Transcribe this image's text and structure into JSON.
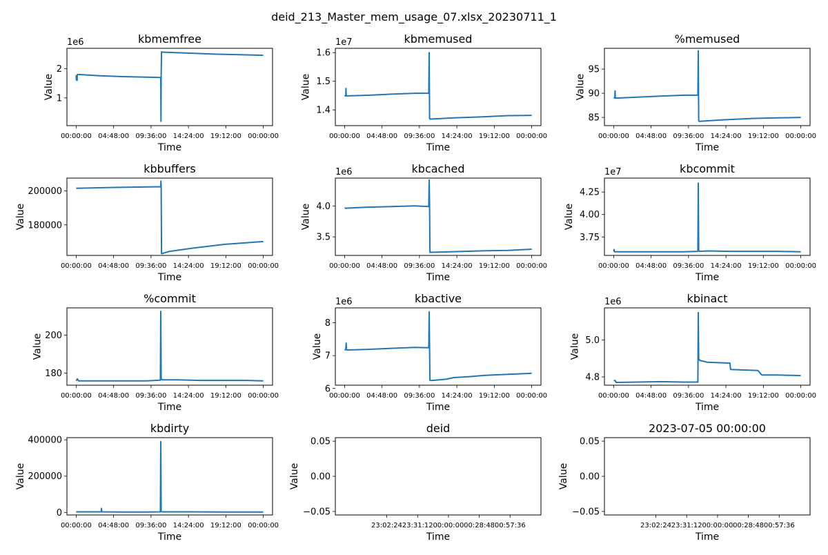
{
  "figure": {
    "title": "deid_213_Master_mem_usage_07.xlsx_20230711_1",
    "line_color": "#1f77b4"
  },
  "chart_data": [
    {
      "type": "line",
      "title": "kbmemfree",
      "xlabel": "Time",
      "ylabel": "Value",
      "offset_text": "1e6",
      "x_ticks": [
        "00:00:00",
        "04:48:00",
        "09:36:00",
        "14:24:00",
        "19:12:00",
        "00:00:00"
      ],
      "y_ticks": [
        "1",
        "2"
      ],
      "y_tick_values": [
        1,
        2
      ],
      "ylim": [
        0.05,
        2.7
      ],
      "series": [
        {
          "x_hours": [
            0,
            0.02,
            0.08,
            0.12,
            0.13,
            0.15,
            0.5,
            3,
            6,
            9,
            10.85,
            10.88,
            10.9,
            10.95,
            11.0,
            11.05,
            14,
            18,
            21,
            24
          ],
          "values": [
            1.78,
            1.62,
            1.73,
            1.6,
            1.78,
            1.8,
            1.8,
            1.76,
            1.73,
            1.71,
            1.7,
            0.2,
            1.8,
            2.58,
            2.58,
            2.57,
            2.54,
            2.5,
            2.48,
            2.46
          ]
        }
      ]
    },
    {
      "type": "line",
      "title": "kbmemused",
      "xlabel": "Time",
      "ylabel": "Value",
      "offset_text": "1e7",
      "x_ticks": [
        "00:00:00",
        "04:48:00",
        "09:36:00",
        "14:24:00",
        "19:12:00",
        "00:00:00"
      ],
      "y_ticks": [
        "1.4",
        "1.5",
        "1.6"
      ],
      "y_tick_values": [
        1.4,
        1.5,
        1.6
      ],
      "ylim": [
        1.345,
        1.615
      ],
      "series": [
        {
          "x_hours": [
            0,
            0.15,
            0.18,
            0.2,
            0.22,
            0.3,
            3,
            6,
            9,
            10.8,
            10.85,
            10.9,
            10.95,
            11.1,
            14,
            18,
            21,
            24
          ],
          "values": [
            1.448,
            1.45,
            1.475,
            1.452,
            1.448,
            1.449,
            1.451,
            1.455,
            1.458,
            1.458,
            1.6,
            1.37,
            1.368,
            1.368,
            1.372,
            1.376,
            1.38,
            1.381
          ]
        }
      ]
    },
    {
      "type": "line",
      "title": "%memused",
      "xlabel": "Time",
      "ylabel": "Value",
      "offset_text": "",
      "x_ticks": [
        "00:00:00",
        "04:48:00",
        "09:36:00",
        "14:24:00",
        "19:12:00",
        "00:00:00"
      ],
      "y_ticks": [
        "85",
        "90",
        "95"
      ],
      "y_tick_values": [
        85,
        90,
        95
      ],
      "ylim": [
        83.3,
        99.3
      ],
      "series": [
        {
          "x_hours": [
            0,
            0.15,
            0.18,
            0.2,
            0.22,
            0.3,
            3,
            6,
            9,
            10.8,
            10.85,
            10.9,
            10.95,
            11.1,
            14,
            18,
            21,
            24
          ],
          "values": [
            89.0,
            89.1,
            90.5,
            89.3,
            89.0,
            89.0,
            89.2,
            89.4,
            89.6,
            89.6,
            98.8,
            84.3,
            84.2,
            84.2,
            84.5,
            84.8,
            84.9,
            85.0
          ]
        }
      ]
    },
    {
      "type": "line",
      "title": "kbbuffers",
      "xlabel": "Time",
      "ylabel": "Value",
      "offset_text": "",
      "x_ticks": [
        "00:00:00",
        "04:48:00",
        "09:36:00",
        "14:24:00",
        "19:12:00",
        "00:00:00"
      ],
      "y_ticks": [
        "180000",
        "200000"
      ],
      "y_tick_values": [
        180000,
        200000
      ],
      "ylim": [
        162000,
        207600
      ],
      "series": [
        {
          "x_hours": [
            0,
            5,
            10.85,
            10.87,
            10.9,
            10.95,
            12,
            15,
            19,
            24
          ],
          "values": [
            201600,
            202100,
            202500,
            205800,
            202300,
            163000,
            164400,
            166300,
            168500,
            170200
          ]
        }
      ]
    },
    {
      "type": "line",
      "title": "kbcached",
      "xlabel": "Time",
      "ylabel": "Value",
      "offset_text": "1e6",
      "x_ticks": [
        "00:00:00",
        "04:48:00",
        "09:36:00",
        "14:24:00",
        "19:12:00",
        "00:00:00"
      ],
      "y_ticks": [
        "3.5",
        "4.0"
      ],
      "y_tick_values": [
        3.5,
        4.0
      ],
      "ylim": [
        3.2,
        4.45
      ],
      "series": [
        {
          "x_hours": [
            0,
            0.2,
            0.3,
            3,
            6,
            9,
            10.8,
            10.85,
            10.9,
            10.95,
            11.1,
            14,
            18,
            21,
            24
          ],
          "values": [
            3.97,
            3.96,
            3.965,
            3.98,
            3.99,
            4.0,
            3.99,
            4.42,
            3.99,
            3.25,
            3.25,
            3.26,
            3.275,
            3.28,
            3.3
          ]
        }
      ]
    },
    {
      "type": "line",
      "title": "kbcommit",
      "xlabel": "Time",
      "ylabel": "Value",
      "offset_text": "1e7",
      "x_ticks": [
        "00:00:00",
        "04:48:00",
        "09:36:00",
        "14:24:00",
        "19:12:00",
        "00:00:00"
      ],
      "y_ticks": [
        "3.75",
        "4.00",
        "4.25"
      ],
      "y_tick_values": [
        3.75,
        4.0,
        4.25
      ],
      "ylim": [
        3.545,
        4.405
      ],
      "series": [
        {
          "x_hours": [
            0,
            0.05,
            0.1,
            0.3,
            3,
            6,
            9,
            10.8,
            10.85,
            10.9,
            11,
            12,
            15,
            18,
            21,
            24
          ],
          "values": [
            3.59,
            3.61,
            3.585,
            3.585,
            3.585,
            3.585,
            3.585,
            3.59,
            4.35,
            3.6,
            3.59,
            3.595,
            3.59,
            3.59,
            3.59,
            3.585
          ]
        }
      ]
    },
    {
      "type": "line",
      "title": "%commit",
      "xlabel": "Time",
      "ylabel": "Value",
      "offset_text": "",
      "x_ticks": [
        "00:00:00",
        "04:48:00",
        "09:36:00",
        "14:24:00",
        "19:12:00",
        "00:00:00"
      ],
      "y_ticks": [
        "180",
        "200"
      ],
      "y_tick_values": [
        180,
        200
      ],
      "ylim": [
        173.7,
        214.3
      ],
      "series": [
        {
          "x_hours": [
            0,
            0.15,
            0.3,
            3,
            6,
            9,
            10.8,
            10.85,
            10.9,
            11,
            13,
            16,
            19,
            22,
            24
          ],
          "values": [
            176,
            177,
            176,
            176,
            176,
            176,
            176.3,
            212.5,
            177,
            176.5,
            176.5,
            176.2,
            176.2,
            176.2,
            176
          ]
        }
      ]
    },
    {
      "type": "line",
      "title": "kbactive",
      "xlabel": "Time",
      "ylabel": "Value",
      "offset_text": "1e6",
      "x_ticks": [
        "00:00:00",
        "04:48:00",
        "09:36:00",
        "14:24:00",
        "19:12:00",
        "00:00:00"
      ],
      "y_ticks": [
        "6",
        "7",
        "8"
      ],
      "y_tick_values": [
        6,
        7,
        8
      ],
      "ylim": [
        6.1,
        8.45
      ],
      "series": [
        {
          "x_hours": [
            0,
            0.15,
            0.2,
            0.25,
            0.3,
            3,
            6,
            9,
            10.8,
            10.85,
            10.9,
            10.95,
            11.1,
            13,
            14,
            16,
            18,
            21,
            24
          ],
          "values": [
            7.17,
            7.18,
            7.38,
            7.18,
            7.17,
            7.19,
            7.22,
            7.25,
            7.24,
            8.33,
            7.2,
            6.25,
            6.24,
            6.28,
            6.33,
            6.36,
            6.4,
            6.43,
            6.46
          ]
        }
      ]
    },
    {
      "type": "line",
      "title": "kbinact",
      "xlabel": "Time",
      "ylabel": "Value",
      "offset_text": "1e6",
      "x_ticks": [
        "00:00:00",
        "04:48:00",
        "09:36:00",
        "14:24:00",
        "19:12:00",
        "00:00:00"
      ],
      "y_ticks": [
        "4.8",
        "5.0"
      ],
      "y_tick_values": [
        4.8,
        5.0
      ],
      "ylim": [
        4.755,
        5.175
      ],
      "series": [
        {
          "x_hours": [
            0,
            0.2,
            0.3,
            3,
            6,
            9,
            10.8,
            10.85,
            10.9,
            11.0,
            12,
            14.9,
            15.0,
            18.5,
            19,
            21,
            24
          ],
          "values": [
            4.78,
            4.78,
            4.77,
            4.772,
            4.774,
            4.772,
            4.772,
            5.15,
            4.9,
            4.89,
            4.88,
            4.875,
            4.84,
            4.835,
            4.81,
            4.81,
            4.807
          ]
        }
      ]
    },
    {
      "type": "line",
      "title": "kbdirty",
      "xlabel": "Time",
      "ylabel": "Value",
      "offset_text": "",
      "x_ticks": [
        "00:00:00",
        "04:48:00",
        "09:36:00",
        "14:24:00",
        "19:12:00",
        "00:00:00"
      ],
      "y_ticks": [
        "0",
        "200000",
        "400000"
      ],
      "y_tick_values": [
        0,
        200000,
        400000
      ],
      "ylim": [
        -14000,
        412000
      ],
      "series": [
        {
          "x_hours": [
            0,
            2,
            3.2,
            3.25,
            3.3,
            6,
            9,
            10.8,
            10.85,
            10.9,
            11,
            15,
            19,
            24
          ],
          "values": [
            3000,
            3000,
            3000,
            22000,
            3000,
            2500,
            2500,
            3000,
            390000,
            5000,
            3000,
            3000,
            2500,
            2500
          ]
        }
      ]
    },
    {
      "type": "line",
      "title": "deid",
      "xlabel": "Time",
      "ylabel": "Value",
      "offset_text": "",
      "x_ticks": [
        "23:02:24",
        "23:31:12",
        "00:00:00",
        "00:28:48",
        "00:57:36"
      ],
      "y_ticks": [
        "−0.05",
        "0.00",
        "0.05"
      ],
      "y_tick_values": [
        -0.05,
        0.0,
        0.05
      ],
      "ylim": [
        -0.055,
        0.055
      ],
      "series": []
    },
    {
      "type": "line",
      "title": "2023-07-05 00:00:00",
      "xlabel": "Time",
      "ylabel": "Value",
      "offset_text": "",
      "x_ticks": [
        "23:02:24",
        "23:31:12",
        "00:00:00",
        "00:28:48",
        "00:57:36"
      ],
      "y_ticks": [
        "−0.05",
        "0.00",
        "0.05"
      ],
      "y_tick_values": [
        -0.05,
        0.0,
        0.05
      ],
      "ylim": [
        -0.055,
        0.055
      ],
      "series": []
    }
  ]
}
